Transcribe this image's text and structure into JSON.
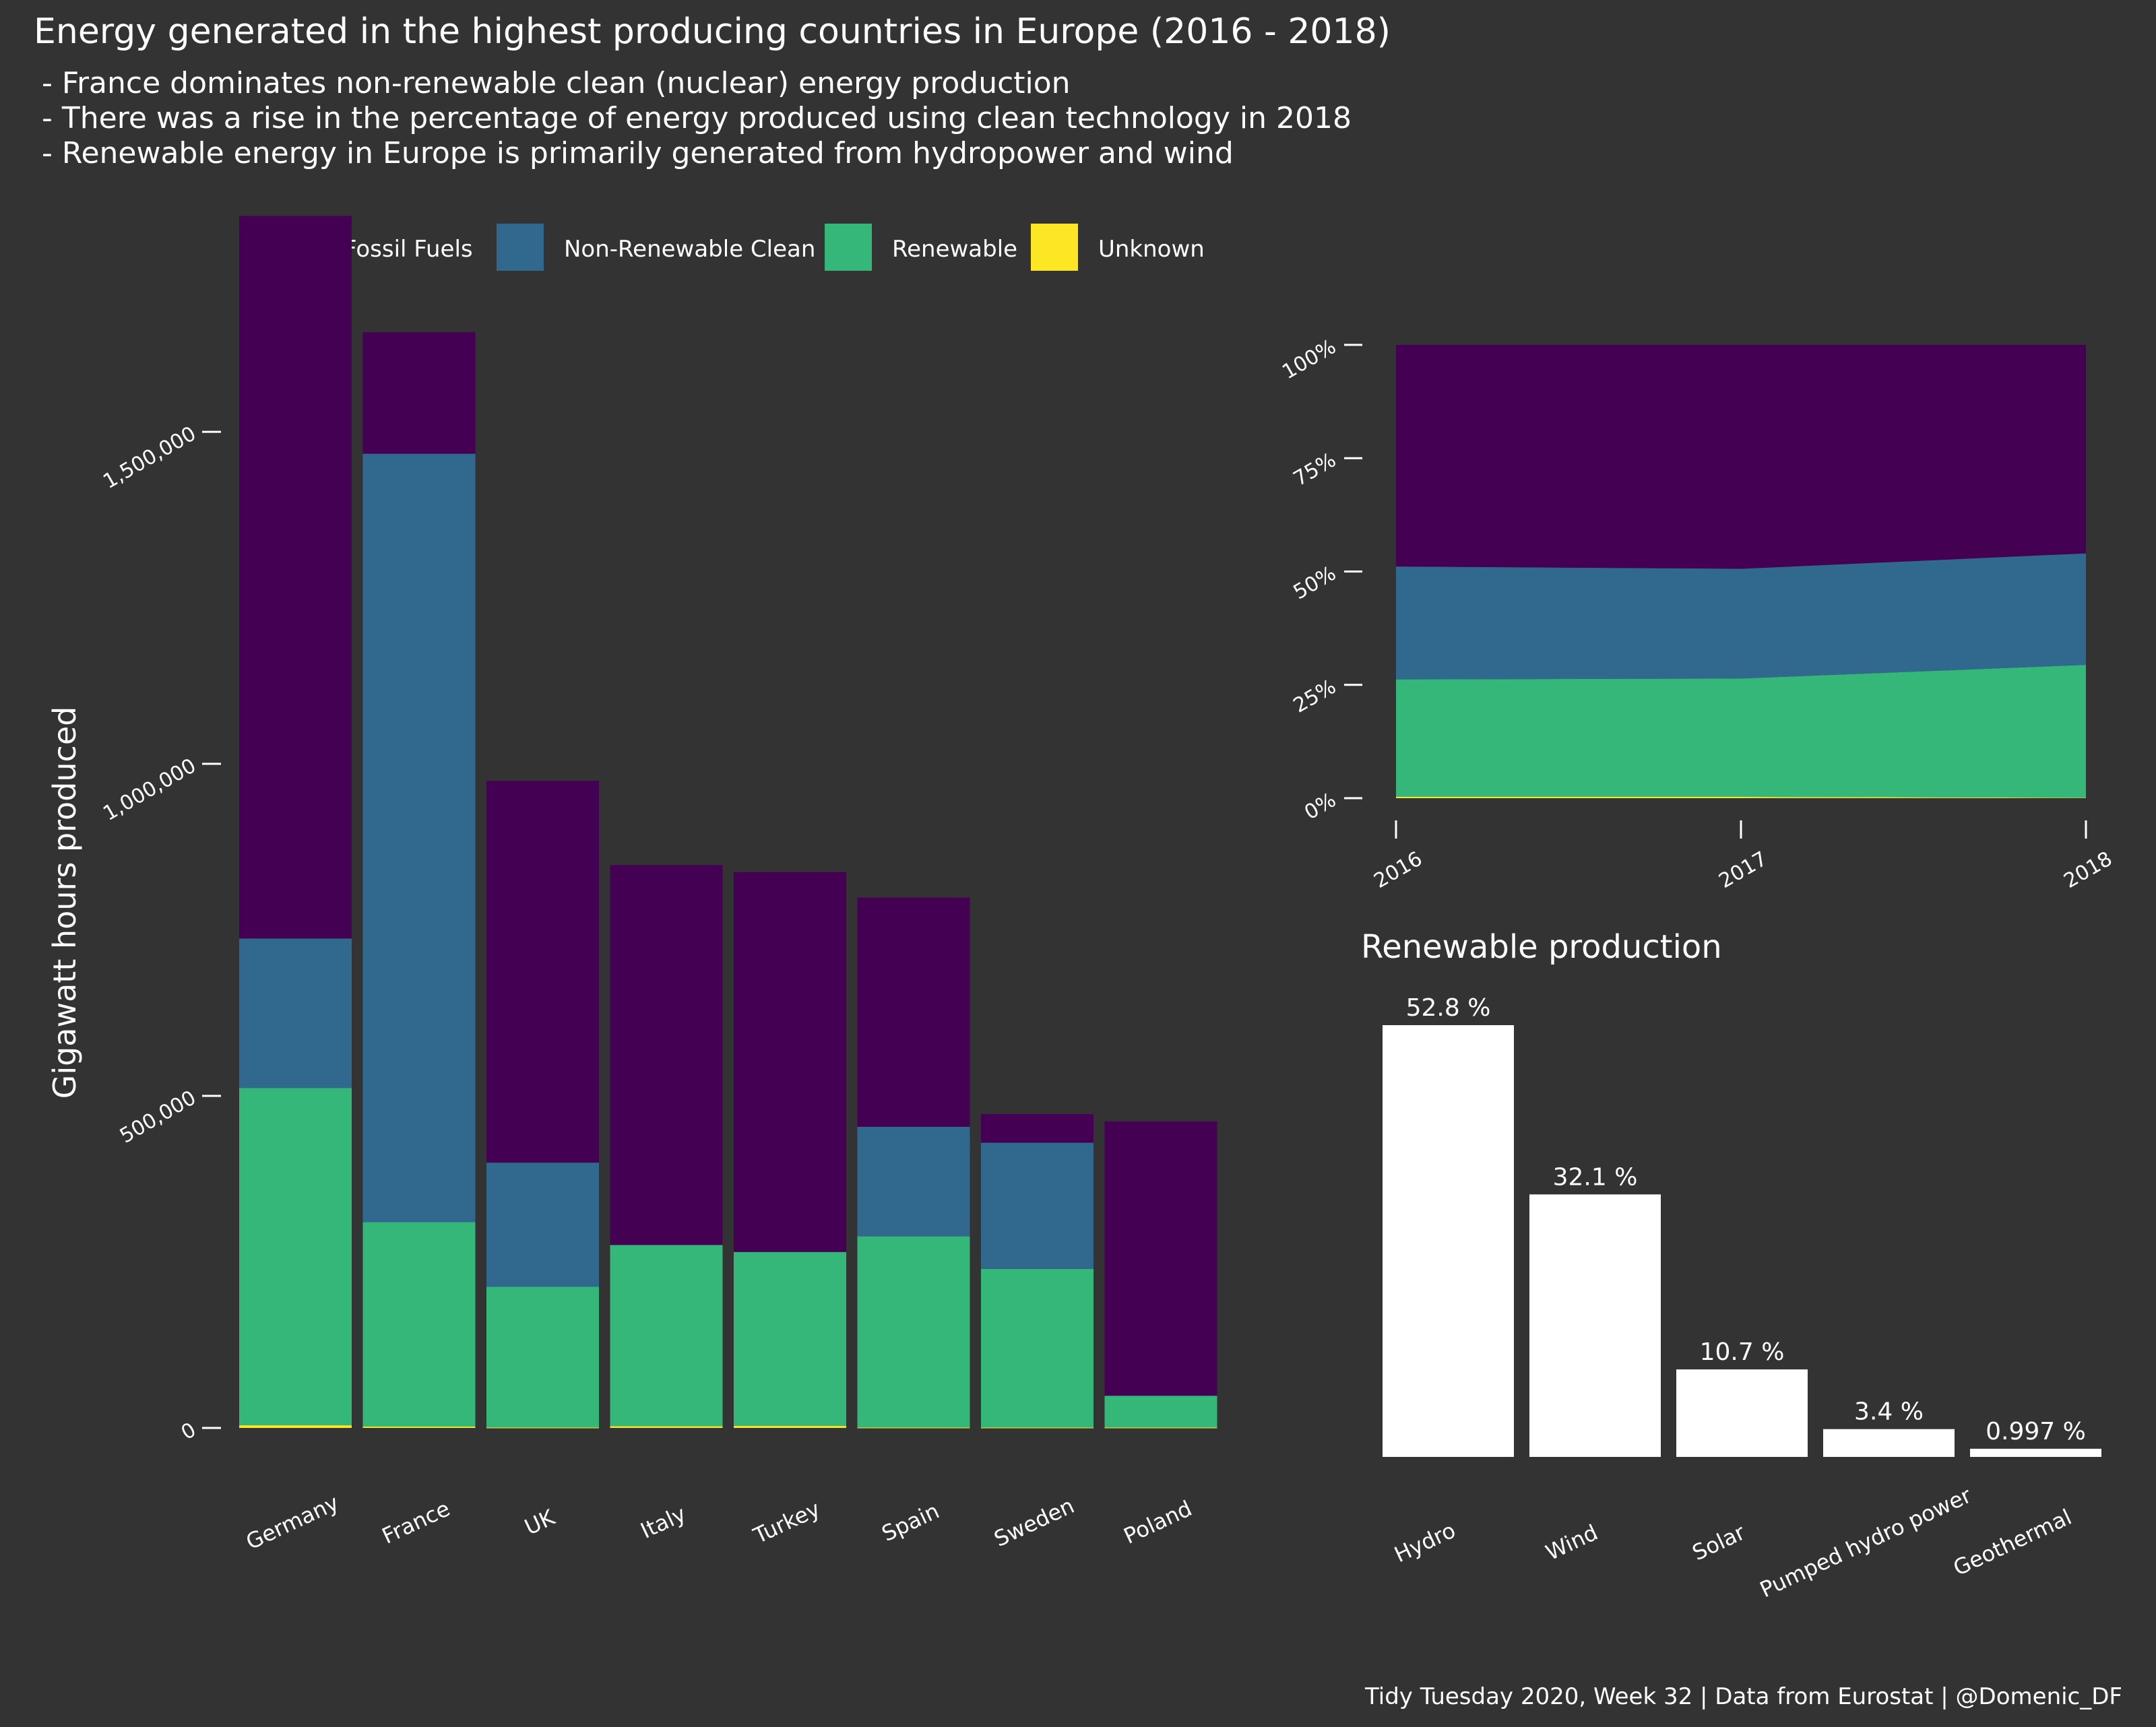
{
  "title": "Energy generated in the highest producing countries in Europe (2016 - 2018)",
  "subtitle_lines": [
    "-  France dominates non-renewable clean (nuclear) energy production",
    "-  There was a rise in the percentage of energy produced using clean technology in 2018",
    "-  Renewable energy in Europe is primarily generated from hydropower and wind"
  ],
  "caption": "Tidy Tuesday 2020, Week 32  |  Data from Eurostat  |  @Domenic_DF",
  "colors": {
    "background": "#333333",
    "fossil": "#440154",
    "nonrenewable": "#31688E",
    "renewable": "#35B779",
    "unknown": "#FDE725",
    "white": "#FFFFFF"
  },
  "legend": [
    {
      "label": "Fossil Fuels",
      "color": "#440154"
    },
    {
      "label": "Non-Renewable Clean",
      "color": "#31688E"
    },
    {
      "label": "Renewable",
      "color": "#35B779"
    },
    {
      "label": "Unknown",
      "color": "#FDE725"
    }
  ],
  "chart_data": [
    {
      "type": "bar",
      "stacked": true,
      "ylabel": "Gigawatt hours produced",
      "xlabel": "",
      "ylim": [
        0,
        1850000
      ],
      "yticks": [
        0,
        500000,
        1000000,
        1500000
      ],
      "ytick_labels": [
        "0",
        "500,000",
        "1,000,000",
        "1,500,000"
      ],
      "grid": false,
      "categories": [
        "Germany",
        "France",
        "UK",
        "Italy",
        "Turkey",
        "Spain",
        "Sweden",
        "Poland"
      ],
      "series": [
        {
          "name": "Unknown",
          "color": "#FDE725",
          "values": [
            4000,
            2000,
            500,
            2500,
            3000,
            500,
            500,
            500
          ]
        },
        {
          "name": "Renewable",
          "color": "#35B779",
          "values": [
            508000,
            308000,
            212000,
            273000,
            262000,
            288000,
            239000,
            48000
          ]
        },
        {
          "name": "Non-Renewable Clean",
          "color": "#31688E",
          "values": [
            225000,
            1157000,
            187000,
            0,
            0,
            165000,
            190000,
            0
          ]
        },
        {
          "name": "Fossil Fuels",
          "color": "#440154",
          "values": [
            1088000,
            183000,
            575000,
            572000,
            572000,
            345000,
            43000,
            413000
          ]
        }
      ]
    },
    {
      "type": "area",
      "stacked": true,
      "percent": true,
      "x": [
        2016,
        2017,
        2018
      ],
      "xtick_labels": [
        "2016",
        "2017",
        "2018"
      ],
      "ylim": [
        0,
        100
      ],
      "yticks": [
        0,
        25,
        50,
        75,
        100
      ],
      "ytick_labels": [
        "0%",
        "25%",
        "50%",
        "75%",
        "100%"
      ],
      "grid": false,
      "series": [
        {
          "name": "Unknown",
          "color": "#FDE725",
          "values": [
            0.3,
            0.3,
            0.1
          ]
        },
        {
          "name": "Renewable",
          "color": "#35B779",
          "values": [
            25.9,
            26.1,
            29.3
          ]
        },
        {
          "name": "Non-Renewable Clean",
          "color": "#31688E",
          "values": [
            24.9,
            24.2,
            24.6
          ]
        },
        {
          "name": "Fossil Fuels",
          "color": "#440154",
          "values": [
            48.9,
            49.4,
            46.0
          ]
        }
      ]
    },
    {
      "type": "bar",
      "title": "Renewable production",
      "categories": [
        "Hydro",
        "Wind",
        "Solar",
        "Pumped hydro power",
        "Geothermal"
      ],
      "values": [
        52.8,
        32.1,
        10.7,
        3.4,
        0.997
      ],
      "labels": [
        "52.8 %",
        "32.1 %",
        "10.7 %",
        "3.4 %",
        "0.997 %"
      ],
      "ylim": [
        0,
        52.8
      ],
      "color": "#FFFFFF",
      "grid": false
    }
  ]
}
